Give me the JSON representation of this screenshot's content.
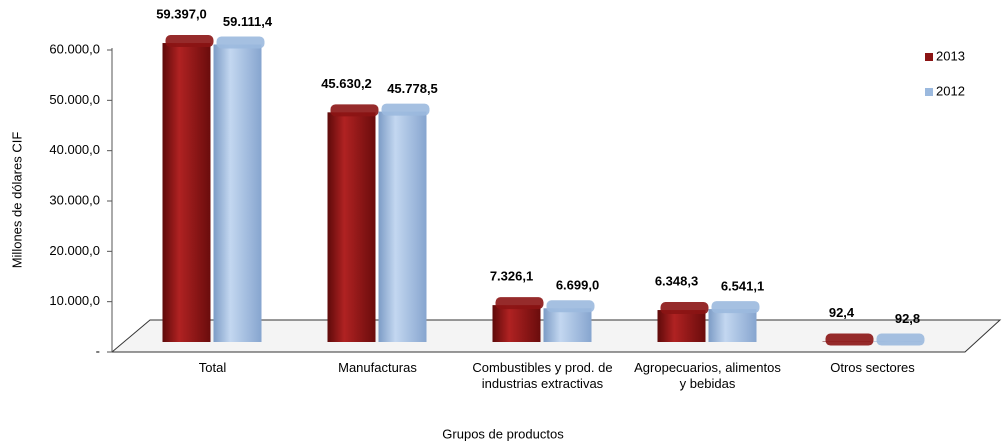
{
  "chart_data": {
    "type": "bar",
    "y_label": "Millones de dólares CIF",
    "x_label": "Grupos de productos",
    "categories": [
      "Total",
      "Manufacturas",
      "Combustibles y prod. de industrias extractivas",
      "Agropecuarios, alimentos y bebidas",
      "Otros sectores"
    ],
    "series": [
      {
        "name": "2013",
        "color": "#8b1414",
        "label_color": "#7a1010",
        "values": [
          59397.0,
          45630.2,
          7326.1,
          6348.3,
          92.4
        ],
        "value_labels": [
          "59.397,0",
          "45.630,2",
          "7.326,1",
          "6.348,3",
          "92,4"
        ]
      },
      {
        "name": "2012",
        "color": "#9bb9de",
        "label_color": "#17264a",
        "values": [
          59111.4,
          45778.5,
          6699.0,
          6541.1,
          92.8
        ],
        "value_labels": [
          "59.111,4",
          "45.778,5",
          "6.699,0",
          "6.541,1",
          "92,8"
        ]
      }
    ],
    "ylim": [
      0,
      60000
    ],
    "yticks": [
      {
        "value": 0,
        "label": "-"
      },
      {
        "value": 10000,
        "label": "10.000,0"
      },
      {
        "value": 20000,
        "label": "20.000,0"
      },
      {
        "value": 30000,
        "label": "30.000,0"
      },
      {
        "value": 40000,
        "label": "40.000,0"
      },
      {
        "value": 50000,
        "label": "50.000,0"
      },
      {
        "value": 60000,
        "label": "60.000,0"
      }
    ],
    "legend": "right"
  }
}
